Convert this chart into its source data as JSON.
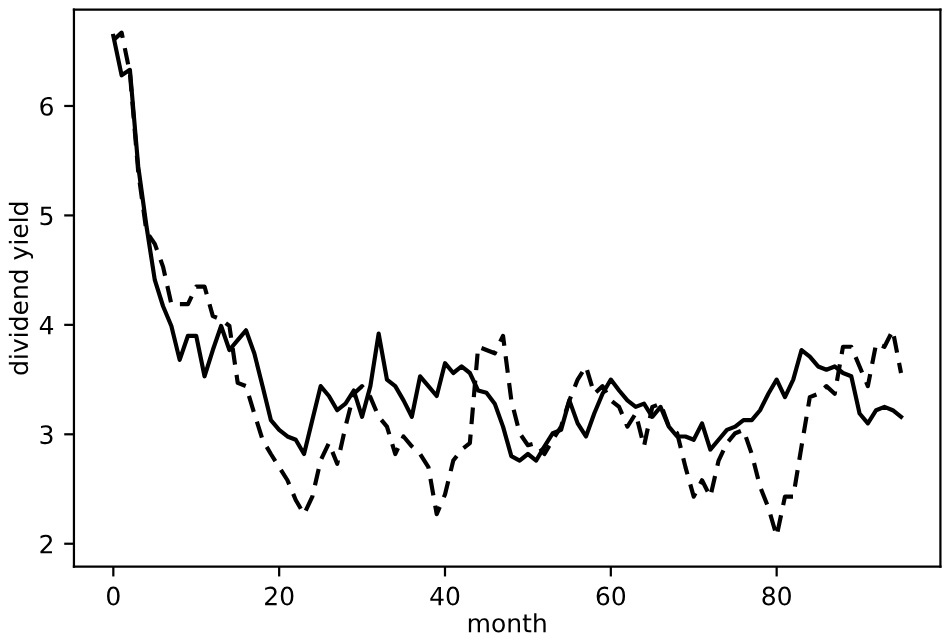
{
  "chart_data": {
    "type": "line",
    "xlabel": "month",
    "ylabel": "dividend yield",
    "xlim": [
      -4.75,
      99.75
    ],
    "ylim": [
      1.79,
      6.88
    ],
    "xticks": [
      0,
      20,
      40,
      60,
      80
    ],
    "yticks": [
      2,
      3,
      4,
      5,
      6
    ],
    "grid": false,
    "legend": false,
    "marker": "none",
    "x": [
      0,
      1,
      2,
      3,
      4,
      5,
      6,
      7,
      8,
      9,
      10,
      11,
      12,
      13,
      14,
      15,
      16,
      17,
      18,
      19,
      20,
      21,
      22,
      23,
      24,
      25,
      26,
      27,
      28,
      29,
      30,
      31,
      32,
      33,
      34,
      35,
      36,
      37,
      38,
      39,
      40,
      41,
      42,
      43,
      44,
      45,
      46,
      47,
      48,
      49,
      50,
      51,
      52,
      53,
      54,
      55,
      56,
      57,
      58,
      59,
      60,
      61,
      62,
      63,
      64,
      65,
      66,
      67,
      68,
      69,
      70,
      71,
      72,
      73,
      74,
      75,
      76,
      77,
      78,
      79,
      80,
      81,
      82,
      83,
      84,
      85,
      86,
      87,
      88,
      89,
      90,
      91,
      92,
      93,
      94,
      95
    ],
    "series": [
      {
        "color": "#000000",
        "line_style": "solid",
        "values": [
          6.64,
          6.28,
          6.33,
          5.45,
          4.9,
          4.41,
          4.17,
          3.99,
          3.68,
          3.9,
          3.9,
          3.53,
          3.77,
          3.99,
          3.77,
          3.86,
          3.95,
          3.74,
          3.44,
          3.13,
          3.04,
          2.98,
          2.95,
          2.82,
          3.13,
          3.44,
          3.35,
          3.22,
          3.28,
          3.4,
          3.16,
          3.44,
          3.92,
          3.5,
          3.44,
          3.31,
          3.16,
          3.53,
          3.44,
          3.35,
          3.65,
          3.56,
          3.62,
          3.56,
          3.4,
          3.38,
          3.28,
          3.07,
          2.8,
          2.76,
          2.82,
          2.76,
          2.89,
          3.01,
          3.04,
          3.31,
          3.1,
          2.98,
          3.19,
          3.37,
          3.5,
          3.4,
          3.31,
          3.25,
          3.28,
          3.16,
          3.25,
          3.07,
          2.98,
          2.98,
          2.95,
          3.1,
          2.86,
          2.95,
          3.04,
          3.07,
          3.13,
          3.13,
          3.22,
          3.37,
          3.5,
          3.34,
          3.5,
          3.77,
          3.71,
          3.62,
          3.59,
          3.62,
          3.56,
          3.53,
          3.19,
          3.1,
          3.22,
          3.25,
          3.22,
          3.16
        ]
      },
      {
        "color": "#000000",
        "line_style": "dashed",
        "values": [
          6.6,
          6.67,
          6.3,
          5.4,
          4.85,
          4.74,
          4.53,
          4.19,
          4.19,
          4.19,
          4.35,
          4.35,
          4.08,
          4.05,
          3.99,
          3.47,
          3.44,
          3.19,
          2.95,
          2.82,
          2.7,
          2.58,
          2.4,
          2.27,
          2.43,
          2.76,
          2.92,
          2.73,
          3.07,
          3.37,
          3.44,
          3.34,
          3.16,
          3.07,
          2.82,
          2.98,
          2.89,
          2.82,
          2.7,
          2.27,
          2.45,
          2.76,
          2.86,
          2.92,
          3.8,
          3.77,
          3.74,
          3.9,
          3.31,
          3.01,
          2.9,
          2.92,
          2.82,
          2.95,
          3.07,
          3.31,
          3.5,
          3.62,
          3.37,
          3.44,
          3.31,
          3.25,
          3.07,
          3.19,
          2.89,
          3.25,
          3.28,
          3.07,
          3.01,
          2.7,
          2.43,
          2.58,
          2.43,
          2.76,
          2.92,
          3.01,
          3.04,
          2.82,
          2.52,
          2.33,
          2.07,
          2.43,
          2.43,
          2.89,
          3.34,
          3.37,
          3.44,
          3.37,
          3.8,
          3.8,
          3.62,
          3.44,
          3.83,
          3.8,
          3.95,
          3.56
        ]
      }
    ]
  }
}
